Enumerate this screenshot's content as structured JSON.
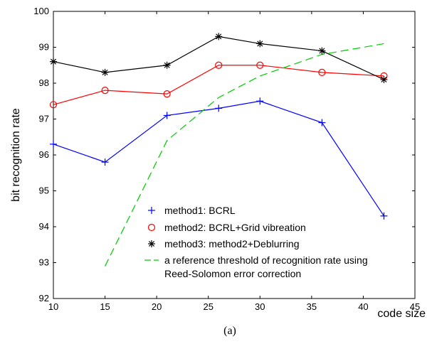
{
  "chart_data": {
    "type": "line",
    "xlabel": "code size",
    "ylabel": "bit recognition rate",
    "caption": "(a)",
    "xlim": [
      10,
      45
    ],
    "ylim": [
      92,
      100
    ],
    "xticks": [
      10,
      15,
      20,
      25,
      30,
      35,
      40,
      45
    ],
    "yticks": [
      92,
      93,
      94,
      95,
      96,
      97,
      98,
      99,
      100
    ],
    "grid": false,
    "legend_position": "bottom-right",
    "series": [
      {
        "name": "method1: BCRL",
        "color": "#0000ff",
        "marker": "plus",
        "x": [
          10,
          15,
          21,
          26,
          30,
          36,
          42
        ],
        "y": [
          96.3,
          95.8,
          97.1,
          97.3,
          97.5,
          96.9,
          94.3
        ]
      },
      {
        "name": "method2: BCRL+Grid vibreation",
        "color": "#ff0000",
        "marker": "circle",
        "x": [
          10,
          15,
          21,
          26,
          30,
          36,
          42
        ],
        "y": [
          97.4,
          97.8,
          97.7,
          98.5,
          98.5,
          98.3,
          98.2
        ]
      },
      {
        "name": "method3: method2+Deblurring",
        "color": "#000000",
        "marker": "star",
        "x": [
          10,
          15,
          21,
          26,
          30,
          36,
          42
        ],
        "y": [
          98.6,
          98.3,
          98.5,
          99.3,
          99.1,
          98.9,
          98.1
        ]
      },
      {
        "name": [
          "a reference threshold of recognition rate using",
          "Reed-Solomon error correction"
        ],
        "color": "#00cc00",
        "marker": "none",
        "dashed": true,
        "x": [
          15,
          21,
          26,
          30,
          36,
          42
        ],
        "y": [
          92.9,
          96.4,
          97.6,
          98.2,
          98.8,
          99.1
        ]
      }
    ]
  }
}
